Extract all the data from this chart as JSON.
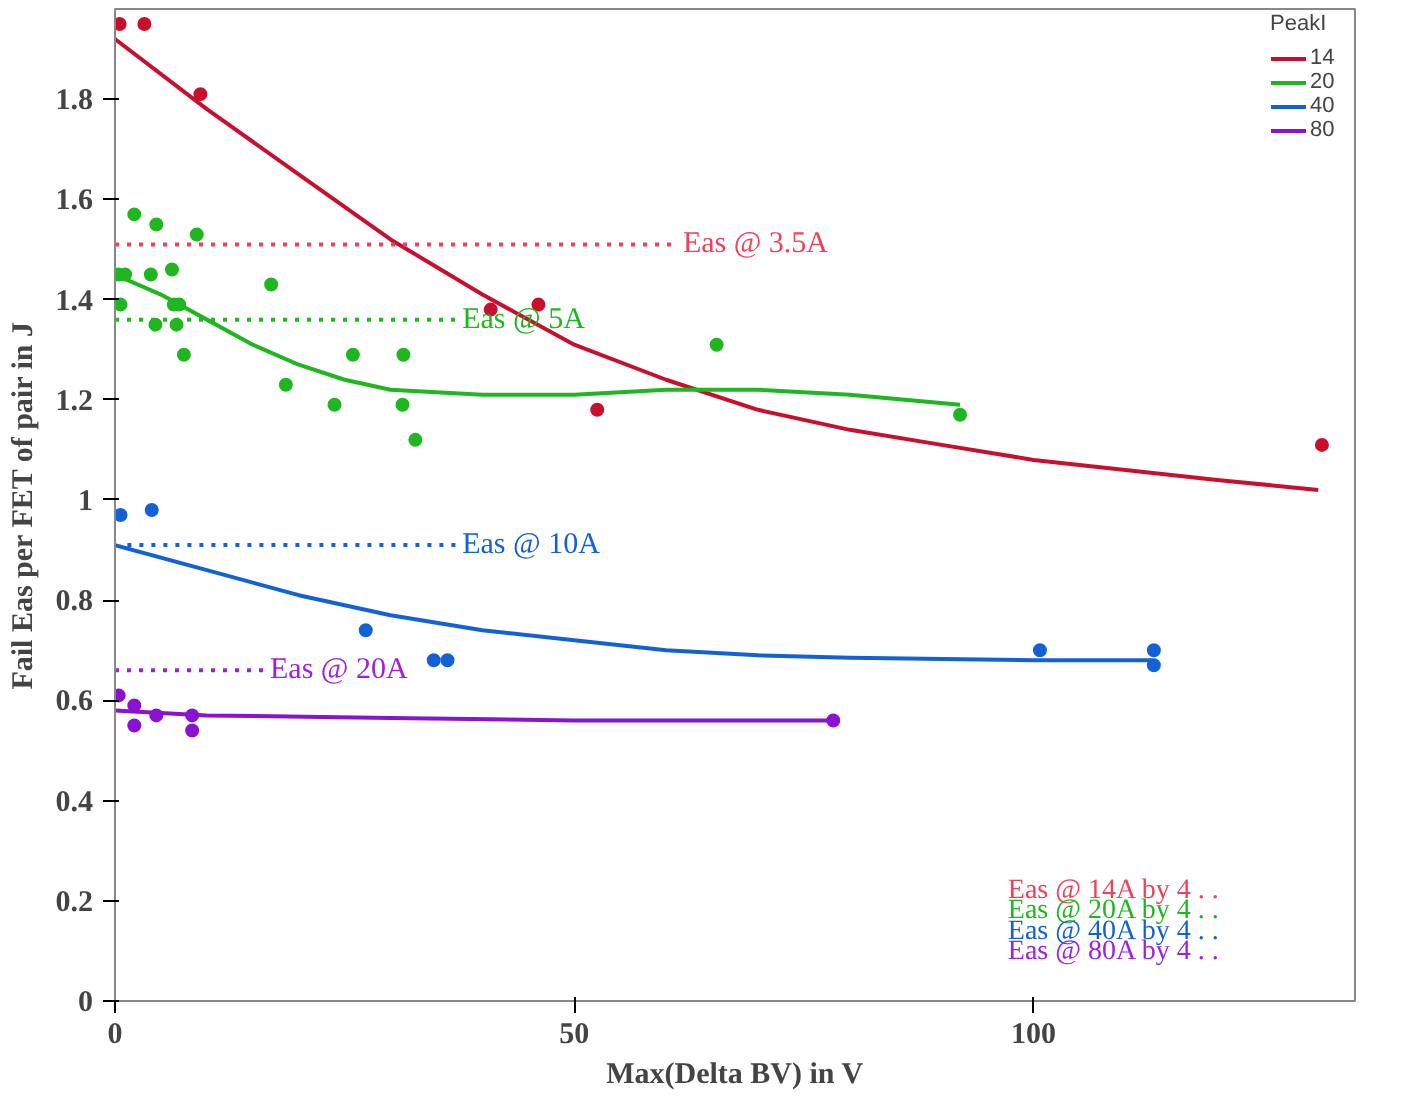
{
  "chart_data": {
    "type": "scatter",
    "xlabel": "Max(Delta BV) in V",
    "ylabel": "Fail Eas per FET of pair in J",
    "legend_title": "PeakI",
    "legend": "top right",
    "grid": false,
    "marker": "circle",
    "xlim": [
      0,
      135
    ],
    "xticks": [
      0,
      50,
      100
    ],
    "ylim": [
      0,
      1.98
    ],
    "yticks": [
      0,
      0.2,
      0.4,
      0.6,
      0.8,
      1,
      1.2,
      1.4,
      1.6,
      1.8
    ],
    "series": [
      {
        "name": "14",
        "color": "#c8102e",
        "x": [
          0.5,
          3.2,
          9.3,
          40.9,
          46.1,
          52.5,
          131.4
        ],
        "values": [
          1.95,
          1.95,
          1.81,
          1.38,
          1.39,
          1.18,
          1.11
        ]
      },
      {
        "name": "20",
        "color": "#1fb71f",
        "x": [
          0.6,
          1.1,
          0.4,
          2.1,
          3.9,
          4.4,
          4.5,
          6.2,
          6.4,
          7.0,
          6.7,
          7.5,
          8.9,
          17.0,
          18.6,
          25.9,
          23.9,
          31.4,
          31.3,
          32.7,
          65.5,
          92.0
        ],
        "values": [
          1.39,
          1.45,
          1.45,
          1.57,
          1.45,
          1.35,
          1.55,
          1.46,
          1.39,
          1.39,
          1.35,
          1.29,
          1.53,
          1.43,
          1.23,
          1.29,
          1.19,
          1.29,
          1.19,
          1.12,
          1.31,
          1.17
        ]
      },
      {
        "name": "40",
        "color": "#1262d6",
        "x": [
          0.6,
          4.0,
          27.3,
          34.7,
          36.2,
          100.7,
          113.1,
          113.1
        ],
        "values": [
          0.97,
          0.98,
          0.74,
          0.68,
          0.68,
          0.7,
          0.7,
          0.67
        ]
      },
      {
        "name": "80",
        "color": "#8a12d0",
        "x": [
          0.4,
          2.1,
          2.1,
          4.5,
          8.4,
          8.4,
          78.2
        ],
        "values": [
          0.61,
          0.59,
          0.55,
          0.57,
          0.57,
          0.54,
          0.56
        ]
      },
      {
        "type": "line",
        "marker": "none",
        "color": "#c8102e",
        "x": [
          0,
          10,
          20,
          30,
          40,
          50,
          60,
          70,
          80,
          90,
          100,
          110,
          120,
          131
        ],
        "values": [
          1.92,
          1.78,
          1.65,
          1.52,
          1.41,
          1.31,
          1.24,
          1.18,
          1.14,
          1.11,
          1.08,
          1.06,
          1.04,
          1.02
        ]
      },
      {
        "type": "line",
        "marker": "none",
        "color": "#1fb71f",
        "x": [
          0,
          5,
          10,
          15,
          20,
          25,
          30,
          40,
          50,
          60,
          70,
          80,
          92
        ],
        "values": [
          1.45,
          1.41,
          1.36,
          1.31,
          1.27,
          1.24,
          1.22,
          1.21,
          1.21,
          1.22,
          1.22,
          1.21,
          1.19
        ]
      },
      {
        "type": "line",
        "marker": "none",
        "color": "#1262d6",
        "x": [
          0,
          10,
          20,
          30,
          40,
          50,
          60,
          70,
          80,
          100,
          113
        ],
        "values": [
          0.91,
          0.86,
          0.81,
          0.77,
          0.74,
          0.72,
          0.7,
          0.69,
          0.685,
          0.68,
          0.68
        ]
      },
      {
        "type": "line",
        "marker": "none",
        "color": "#8a12d0",
        "x": [
          0,
          10,
          30,
          50,
          78
        ],
        "values": [
          0.58,
          0.57,
          0.565,
          0.56,
          0.56
        ]
      }
    ],
    "ref_lines": [
      {
        "axis": "y",
        "value": 1.51,
        "label": "Eas @ 3.5A",
        "color": "#f0405a",
        "line_style": "dotted"
      },
      {
        "axis": "y",
        "value": 1.36,
        "label": "Eas @ 5A",
        "color": "#1fb71f",
        "line_style": "dotted"
      },
      {
        "axis": "y",
        "value": 0.91,
        "label": "Eas @ 10A",
        "color": "#1262d6",
        "line_style": "dotted"
      },
      {
        "axis": "y",
        "value": 0.66,
        "label": "Eas @ 20A",
        "color": "#a020e0",
        "line_style": "dotted"
      }
    ],
    "annotations": [
      "Eas @ 14A by 4 . .",
      "Eas @ 20A by 4 . .",
      "Eas @ 40A by 4 . .",
      "Eas @ 80A by 4 . ."
    ]
  }
}
